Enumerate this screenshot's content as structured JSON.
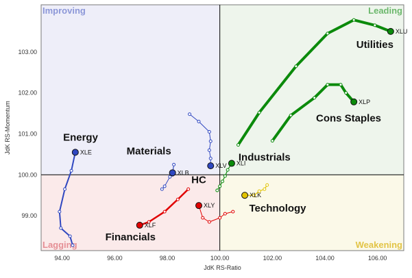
{
  "chart_data": {
    "type": "line",
    "title": "",
    "xlabel": "JdK RS-Ratio",
    "ylabel": "JdK RS-Momentum",
    "xlim": [
      93.2,
      107.0
    ],
    "ylim": [
      98.15,
      104.15
    ],
    "center": {
      "x": 100,
      "y": 100
    },
    "xticks": [
      94,
      96,
      98,
      100,
      102,
      104,
      106
    ],
    "xtick_labels": [
      "94.00",
      "96.00",
      "98.00",
      "100.00",
      "102.00",
      "104.00",
      "106.00"
    ],
    "yticks": [
      99,
      100,
      101,
      102,
      103
    ],
    "ytick_labels": [
      "99.00",
      "100.00",
      "101.00",
      "102.00",
      "103.00"
    ],
    "grid": false,
    "quadrants": [
      {
        "name": "Improving",
        "position": "top-left",
        "bg": "#eeeef9",
        "color": "#8c97d8"
      },
      {
        "name": "Leading",
        "position": "top-right",
        "bg": "#eef5ec",
        "color": "#6cb86c"
      },
      {
        "name": "Lagging",
        "position": "bottom-left",
        "bg": "#fbeaea",
        "color": "#e58f95"
      },
      {
        "name": "Weakening",
        "position": "bottom-right",
        "bg": "#fbf9e8",
        "color": "#e2c446"
      }
    ],
    "series": [
      {
        "name": "Utilities",
        "symbol": "XLU",
        "color": "#0b8a0b",
        "width": 4,
        "points": [
          [
            100.7,
            100.73
          ],
          [
            101.5,
            101.52
          ],
          [
            102.9,
            102.65
          ],
          [
            104.1,
            103.45
          ],
          [
            105.1,
            103.78
          ],
          [
            105.9,
            103.65
          ],
          [
            106.5,
            103.5
          ]
        ],
        "label_xy": [
          105.9,
          103.1
        ]
      },
      {
        "name": "Cons Staples",
        "symbol": "XLP",
        "color": "#0b8a0b",
        "width": 4,
        "points": [
          [
            102.0,
            100.83
          ],
          [
            102.7,
            101.45
          ],
          [
            103.6,
            101.88
          ],
          [
            104.1,
            102.2
          ],
          [
            104.6,
            102.2
          ],
          [
            104.8,
            102.0
          ],
          [
            105.1,
            101.78
          ]
        ],
        "label_xy": [
          104.9,
          101.3
        ]
      },
      {
        "name": "Industrials",
        "symbol": "XLI",
        "color": "#0b8a0b",
        "width": 1.2,
        "points": [
          [
            99.9,
            99.62
          ],
          [
            100.0,
            99.72
          ],
          [
            100.1,
            99.84
          ],
          [
            100.2,
            99.97
          ],
          [
            100.3,
            100.12
          ],
          [
            100.45,
            100.28
          ]
        ],
        "label_xy": [
          101.7,
          100.35
        ]
      },
      {
        "name": "Energy",
        "symbol": "XLE",
        "color": "#2f47c0",
        "width": 2,
        "points": [
          [
            94.4,
            98.28
          ],
          [
            94.3,
            98.5
          ],
          [
            93.95,
            98.7
          ],
          [
            93.9,
            99.1
          ],
          [
            94.1,
            99.65
          ],
          [
            94.35,
            100.1
          ],
          [
            94.5,
            100.55
          ]
        ],
        "label_xy": [
          94.7,
          100.83
        ]
      },
      {
        "name": "Materials",
        "symbol": "XLB",
        "color": "#2f47c0",
        "width": 1,
        "points": [
          [
            97.8,
            99.65
          ],
          [
            97.9,
            99.72
          ],
          [
            98.1,
            99.95
          ],
          [
            98.2,
            100.0
          ],
          [
            98.25,
            100.25
          ],
          [
            98.2,
            100.05
          ]
        ],
        "label_xy": [
          97.3,
          100.5
        ]
      },
      {
        "name": "HC",
        "symbol": "XLV",
        "color": "#2f47c0",
        "width": 1,
        "points": [
          [
            98.85,
            101.48
          ],
          [
            99.2,
            101.3
          ],
          [
            99.6,
            101.05
          ],
          [
            99.65,
            100.82
          ],
          [
            99.6,
            100.6
          ],
          [
            99.65,
            100.4
          ],
          [
            99.65,
            100.22
          ]
        ],
        "label_xy": [
          99.2,
          99.8
        ]
      },
      {
        "name": "Financials",
        "symbol": "XLF",
        "color": "#e00000",
        "width": 2.5,
        "points": [
          [
            98.8,
            99.65
          ],
          [
            98.4,
            99.4
          ],
          [
            97.9,
            99.1
          ],
          [
            97.3,
            98.85
          ],
          [
            96.95,
            98.77
          ]
        ],
        "label_xy": [
          96.6,
          98.4
        ]
      },
      {
        "name": "",
        "symbol": "XLY",
        "color": "#e00000",
        "width": 1,
        "points": [
          [
            100.5,
            99.1
          ],
          [
            100.2,
            99.05
          ],
          [
            100.0,
            98.95
          ],
          [
            99.6,
            98.85
          ],
          [
            99.35,
            98.95
          ],
          [
            99.2,
            99.25
          ]
        ],
        "label_xy": [
          null,
          null
        ]
      },
      {
        "name": "Technology",
        "symbol": "XLK",
        "color": "#e2c300",
        "width": 1.2,
        "points": [
          [
            101.8,
            99.75
          ],
          [
            101.7,
            99.65
          ],
          [
            101.5,
            99.6
          ],
          [
            101.3,
            99.5
          ],
          [
            100.95,
            99.5
          ]
        ],
        "label_xy": [
          102.2,
          99.1
        ]
      }
    ]
  }
}
